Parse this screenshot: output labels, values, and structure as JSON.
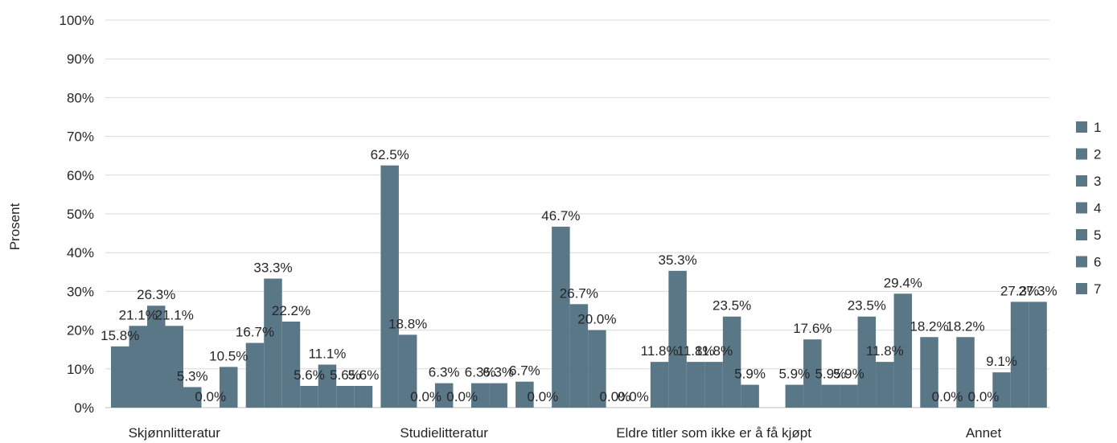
{
  "chart_data": {
    "type": "bar",
    "title": "",
    "xlabel": "",
    "ylabel": "Prosent",
    "ylim": [
      0,
      100
    ],
    "yticks": [
      "0%",
      "10%",
      "20%",
      "30%",
      "40%",
      "50%",
      "60%",
      "70%",
      "80%",
      "90%",
      "100%"
    ],
    "grid": true,
    "legend_position": "right",
    "bar_color": "#5a7788",
    "categories": [
      "Skjønnlitteratur",
      "Studielitteratur",
      "Eldre titler som ikke er å få kjøpt",
      "Annet"
    ],
    "series_labels": [
      "1",
      "2",
      "3",
      "4",
      "5",
      "6",
      "7"
    ],
    "groups": [
      {
        "category": "Skjønnlitteratur",
        "bars": [
          {
            "series": "1",
            "value": 15.8,
            "label": "15.8%"
          },
          {
            "series": "2",
            "value": 21.1,
            "label": "21.1%"
          },
          {
            "series": "3",
            "value": 26.3,
            "label": "26.3%"
          },
          {
            "series": "4",
            "value": 21.1,
            "label": "21.1%"
          },
          {
            "series": "5",
            "value": 5.3,
            "label": "5.3%"
          },
          {
            "series": "6",
            "value": 0.0,
            "label": "0.0%"
          },
          {
            "series": "7",
            "value": 10.5,
            "label": "10.5%"
          }
        ]
      },
      {
        "category": "",
        "bars": [
          {
            "series": "1",
            "value": 16.7,
            "label": "16.7%"
          },
          {
            "series": "2",
            "value": 33.3,
            "label": "33.3%"
          },
          {
            "series": "3",
            "value": 22.2,
            "label": "22.2%"
          },
          {
            "series": "4",
            "value": 5.6,
            "label": "5.6%"
          },
          {
            "series": "5",
            "value": 11.1,
            "label": "11.1%"
          },
          {
            "series": "6",
            "value": 5.6,
            "label": "5.6%"
          },
          {
            "series": "7",
            "value": 5.6,
            "label": "5.6%"
          }
        ]
      },
      {
        "category": "Studielitteratur",
        "bars": [
          {
            "series": "1",
            "value": 62.5,
            "label": "62.5%"
          },
          {
            "series": "2",
            "value": 18.8,
            "label": "18.8%"
          },
          {
            "series": "3",
            "value": 0.0,
            "label": "0.0%"
          },
          {
            "series": "4",
            "value": 6.3,
            "label": "6.3%"
          },
          {
            "series": "5",
            "value": 0.0,
            "label": "0.0%"
          },
          {
            "series": "6",
            "value": 6.3,
            "label": "6.3%"
          },
          {
            "series": "7",
            "value": 6.3,
            "label": "6.3%"
          }
        ]
      },
      {
        "category": "",
        "bars": [
          {
            "series": "1",
            "value": 6.7,
            "label": "6.7%"
          },
          {
            "series": "2",
            "value": 0.0,
            "label": "0.0%"
          },
          {
            "series": "3",
            "value": 46.7,
            "label": "46.7%"
          },
          {
            "series": "4",
            "value": 26.7,
            "label": "26.7%"
          },
          {
            "series": "5",
            "value": 20.0,
            "label": "20.0%"
          },
          {
            "series": "6",
            "value": 0.0,
            "label": "0.0%"
          },
          {
            "series": "7",
            "value": 0.0,
            "label": "0.0%"
          }
        ]
      },
      {
        "category": "Eldre titler som ikke er å få kjøpt",
        "bars": [
          {
            "series": "1",
            "value": 11.8,
            "label": "11.8%"
          },
          {
            "series": "2",
            "value": 35.3,
            "label": "35.3%"
          },
          {
            "series": "3",
            "value": 11.8,
            "label": "11.8%"
          },
          {
            "series": "4",
            "value": 11.8,
            "label": "11.8%"
          },
          {
            "series": "5",
            "value": 23.5,
            "label": "23.5%"
          },
          {
            "series": "6",
            "value": 5.9,
            "label": "5.9%"
          },
          {
            "series": "7",
            "value": 0.0,
            "label": ""
          }
        ]
      },
      {
        "category": "",
        "bars": [
          {
            "series": "1",
            "value": 5.9,
            "label": "5.9%"
          },
          {
            "series": "2",
            "value": 17.6,
            "label": "17.6%"
          },
          {
            "series": "3",
            "value": 5.9,
            "label": "5.9%"
          },
          {
            "series": "4",
            "value": 5.9,
            "label": "5.9%"
          },
          {
            "series": "5",
            "value": 23.5,
            "label": "23.5%"
          },
          {
            "series": "6",
            "value": 11.8,
            "label": "11.8%"
          },
          {
            "series": "7",
            "value": 29.4,
            "label": "29.4%"
          }
        ]
      },
      {
        "category": "Annet",
        "bars": [
          {
            "series": "1",
            "value": 18.2,
            "label": "18.2%"
          },
          {
            "series": "2",
            "value": 0.0,
            "label": "0.0%"
          },
          {
            "series": "3",
            "value": 18.2,
            "label": "18.2%"
          },
          {
            "series": "4",
            "value": 0.0,
            "label": "0.0%"
          },
          {
            "series": "5",
            "value": 9.1,
            "label": "9.1%"
          },
          {
            "series": "6",
            "value": 27.3,
            "label": "27.3%"
          },
          {
            "series": "7",
            "value": 27.3,
            "label": "27.3%"
          }
        ]
      }
    ]
  }
}
